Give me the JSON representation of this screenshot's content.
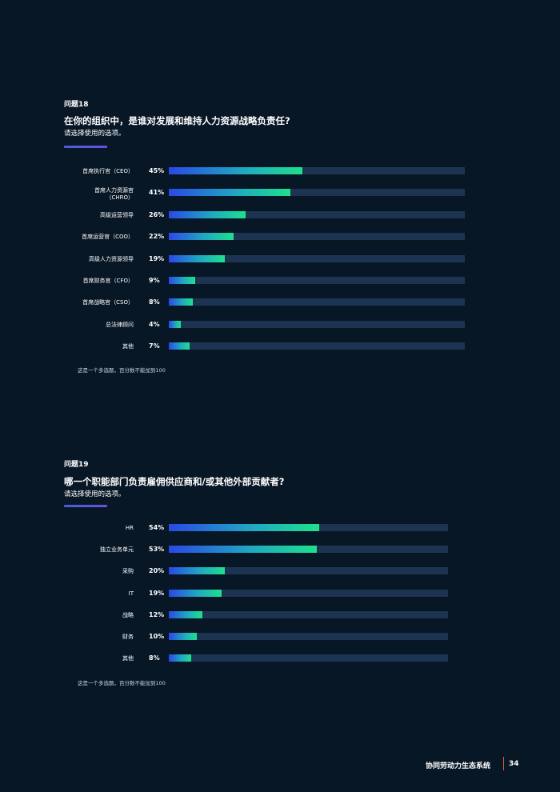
{
  "q18": {
    "label": "问题18",
    "title": "在你的组织中，是谁对发展和维持人力资源战略负责任?",
    "subtitle": "请选择使用的选项。",
    "note": "这是一个多选题，百分数不能加到100"
  },
  "q19": {
    "label": "问题19",
    "title": "哪一个职能部门负责雇佣供应商和/或其他外部贡献者?",
    "subtitle": "请选择使用的选项。",
    "note": "这是一个多选题，百分数不能加到100"
  },
  "footer": {
    "title": "协同劳动力生态系统",
    "page": "34"
  },
  "colors": {
    "background": "#081726",
    "track": "#1d3352",
    "bar_start": "#2a48e6",
    "bar_end": "#1ee08c",
    "accent_rule": "#4a5fd8",
    "footer_separator": "#e05a3a"
  },
  "chart_data": [
    {
      "type": "bar",
      "orientation": "horizontal",
      "categories": [
        "首席执行官（CEO）",
        "首席人力资源官\n（CHRO）",
        "高级运营领导",
        "首席运营官（COO）",
        "高级人力资源领导",
        "首席财务官（CFO）",
        "首席战略官（CSO）",
        "总法律顾问",
        "其他"
      ],
      "values": [
        45,
        41,
        26,
        22,
        19,
        9,
        8,
        4,
        7
      ],
      "value_labels": [
        "45%",
        "41%",
        "26%",
        "22%",
        "19%",
        "9%",
        "8%",
        "4%",
        "7%"
      ],
      "xlim": [
        0,
        100
      ],
      "unit": "%"
    },
    {
      "type": "bar",
      "orientation": "horizontal",
      "categories": [
        "HR",
        "独立业务单元",
        "采购",
        "IT",
        "战略",
        "财务",
        "其他"
      ],
      "values": [
        54,
        53,
        20,
        19,
        12,
        10,
        8
      ],
      "value_labels": [
        "54%",
        "53%",
        "20%",
        "19%",
        "12%",
        "10%",
        "8%"
      ],
      "xlim": [
        0,
        100
      ],
      "unit": "%"
    }
  ]
}
